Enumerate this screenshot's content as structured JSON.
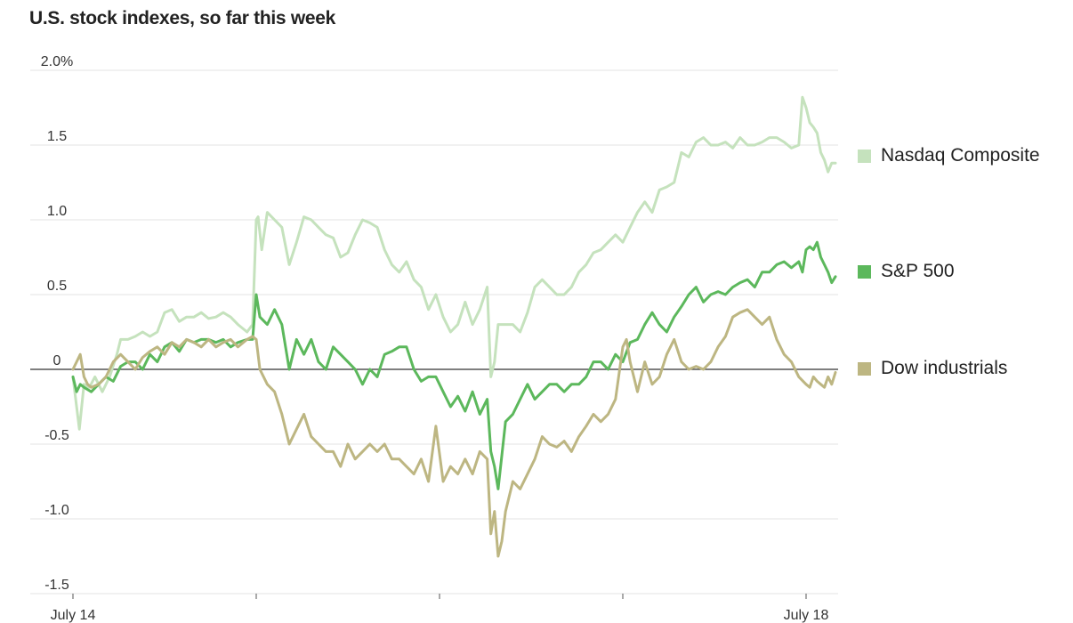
{
  "chart_data": {
    "type": "line",
    "title": "U.S. stock indexes, so far this week",
    "ylim": [
      -1.5,
      2.0
    ],
    "y_ticks": [
      {
        "value": 2.0,
        "label": "2.0%"
      },
      {
        "value": 1.5,
        "label": "1.5"
      },
      {
        "value": 1.0,
        "label": "1.0"
      },
      {
        "value": 0.5,
        "label": "0.5"
      },
      {
        "value": 0,
        "label": "0"
      },
      {
        "value": -0.5,
        "label": "-0.5"
      },
      {
        "value": -1.0,
        "label": "-1.0"
      },
      {
        "value": -1.5,
        "label": "-1.5"
      }
    ],
    "x_ticks": [
      {
        "value": 0,
        "label": "July 14"
      },
      {
        "value": 1,
        "label": ""
      },
      {
        "value": 2,
        "label": ""
      },
      {
        "value": 3,
        "label": ""
      },
      {
        "value": 4,
        "label": "July 18"
      }
    ],
    "xlim": [
      0,
      4.17
    ],
    "grid": true,
    "legend_position": "right",
    "series": [
      {
        "name": "Nasdaq Composite",
        "color": "#c5e2bd",
        "x": [
          0.0,
          0.02,
          0.035,
          0.06,
          0.09,
          0.12,
          0.16,
          0.2,
          0.24,
          0.26,
          0.3,
          0.34,
          0.38,
          0.42,
          0.46,
          0.5,
          0.54,
          0.58,
          0.62,
          0.66,
          0.7,
          0.74,
          0.78,
          0.82,
          0.86,
          0.9,
          0.95,
          0.98,
          1.0,
          1.01,
          1.03,
          1.06,
          1.1,
          1.14,
          1.18,
          1.22,
          1.26,
          1.3,
          1.34,
          1.38,
          1.42,
          1.46,
          1.5,
          1.54,
          1.58,
          1.62,
          1.66,
          1.7,
          1.74,
          1.78,
          1.82,
          1.86,
          1.9,
          1.94,
          1.98,
          2.02,
          2.06,
          2.1,
          2.14,
          2.18,
          2.22,
          2.26,
          2.28,
          2.3,
          2.32,
          2.36,
          2.4,
          2.44,
          2.48,
          2.52,
          2.56,
          2.6,
          2.64,
          2.68,
          2.72,
          2.76,
          2.8,
          2.84,
          2.88,
          2.92,
          2.96,
          3.0,
          3.04,
          3.08,
          3.12,
          3.16,
          3.2,
          3.24,
          3.28,
          3.32,
          3.36,
          3.4,
          3.44,
          3.48,
          3.52,
          3.56,
          3.6,
          3.64,
          3.68,
          3.72,
          3.76,
          3.8,
          3.84,
          3.88,
          3.92,
          3.96,
          3.98,
          4.0,
          4.02,
          4.04,
          4.06,
          4.08,
          4.1,
          4.12,
          4.14,
          4.16
        ],
        "values": [
          -0.05,
          -0.25,
          -0.4,
          -0.1,
          -0.12,
          -0.05,
          -0.15,
          -0.05,
          0.1,
          0.2,
          0.2,
          0.22,
          0.25,
          0.22,
          0.25,
          0.38,
          0.4,
          0.32,
          0.35,
          0.35,
          0.38,
          0.34,
          0.35,
          0.38,
          0.35,
          0.3,
          0.25,
          0.3,
          1.0,
          1.02,
          0.8,
          1.05,
          1.0,
          0.95,
          0.7,
          0.85,
          1.02,
          1.0,
          0.95,
          0.9,
          0.88,
          0.75,
          0.78,
          0.9,
          1.0,
          0.98,
          0.95,
          0.8,
          0.7,
          0.65,
          0.72,
          0.6,
          0.55,
          0.4,
          0.5,
          0.35,
          0.25,
          0.3,
          0.45,
          0.3,
          0.4,
          0.55,
          -0.05,
          0.05,
          0.3,
          0.3,
          0.3,
          0.25,
          0.38,
          0.55,
          0.6,
          0.55,
          0.5,
          0.5,
          0.55,
          0.65,
          0.7,
          0.78,
          0.8,
          0.85,
          0.9,
          0.85,
          0.95,
          1.05,
          1.12,
          1.05,
          1.2,
          1.22,
          1.25,
          1.45,
          1.42,
          1.52,
          1.55,
          1.5,
          1.5,
          1.52,
          1.48,
          1.55,
          1.5,
          1.5,
          1.52,
          1.55,
          1.55,
          1.52,
          1.48,
          1.5,
          1.82,
          1.75,
          1.65,
          1.62,
          1.58,
          1.45,
          1.4,
          1.32,
          1.38,
          1.38
        ]
      },
      {
        "name": "S&P 500",
        "color": "#5cb85c",
        "x": [
          0.0,
          0.02,
          0.04,
          0.06,
          0.1,
          0.14,
          0.18,
          0.22,
          0.26,
          0.3,
          0.34,
          0.38,
          0.42,
          0.46,
          0.5,
          0.54,
          0.58,
          0.62,
          0.66,
          0.7,
          0.74,
          0.78,
          0.82,
          0.86,
          0.9,
          0.95,
          0.98,
          1.0,
          1.02,
          1.06,
          1.1,
          1.14,
          1.18,
          1.22,
          1.26,
          1.3,
          1.34,
          1.38,
          1.42,
          1.46,
          1.5,
          1.54,
          1.58,
          1.62,
          1.66,
          1.7,
          1.74,
          1.78,
          1.82,
          1.86,
          1.9,
          1.94,
          1.98,
          2.02,
          2.06,
          2.1,
          2.14,
          2.18,
          2.22,
          2.26,
          2.28,
          2.3,
          2.32,
          2.36,
          2.4,
          2.44,
          2.48,
          2.52,
          2.56,
          2.6,
          2.64,
          2.68,
          2.72,
          2.76,
          2.8,
          2.84,
          2.88,
          2.92,
          2.96,
          3.0,
          3.04,
          3.08,
          3.12,
          3.16,
          3.2,
          3.24,
          3.28,
          3.32,
          3.36,
          3.4,
          3.44,
          3.48,
          3.52,
          3.56,
          3.6,
          3.64,
          3.68,
          3.72,
          3.76,
          3.8,
          3.84,
          3.88,
          3.92,
          3.96,
          3.98,
          4.0,
          4.02,
          4.04,
          4.06,
          4.08,
          4.1,
          4.12,
          4.14,
          4.16
        ],
        "values": [
          -0.05,
          -0.15,
          -0.1,
          -0.12,
          -0.15,
          -0.1,
          -0.05,
          -0.08,
          0.02,
          0.05,
          0.05,
          0.0,
          0.1,
          0.05,
          0.15,
          0.18,
          0.12,
          0.2,
          0.18,
          0.2,
          0.2,
          0.18,
          0.2,
          0.15,
          0.18,
          0.2,
          0.2,
          0.5,
          0.35,
          0.3,
          0.4,
          0.3,
          0.0,
          0.2,
          0.1,
          0.2,
          0.05,
          0.0,
          0.15,
          0.1,
          0.05,
          0.0,
          -0.1,
          0.0,
          -0.05,
          0.1,
          0.12,
          0.15,
          0.15,
          0.0,
          -0.08,
          -0.05,
          -0.05,
          -0.15,
          -0.25,
          -0.18,
          -0.28,
          -0.15,
          -0.3,
          -0.2,
          -0.55,
          -0.65,
          -0.8,
          -0.35,
          -0.3,
          -0.2,
          -0.1,
          -0.2,
          -0.15,
          -0.1,
          -0.1,
          -0.15,
          -0.1,
          -0.1,
          -0.05,
          0.05,
          0.05,
          0.0,
          0.1,
          0.05,
          0.18,
          0.2,
          0.3,
          0.38,
          0.3,
          0.25,
          0.35,
          0.42,
          0.5,
          0.55,
          0.45,
          0.5,
          0.52,
          0.5,
          0.55,
          0.58,
          0.6,
          0.55,
          0.65,
          0.65,
          0.7,
          0.72,
          0.68,
          0.72,
          0.65,
          0.8,
          0.82,
          0.8,
          0.85,
          0.75,
          0.7,
          0.65,
          0.58,
          0.62
        ],
        "width": 3
      },
      {
        "name": "Dow industrials",
        "color": "#bdb682",
        "x": [
          0.0,
          0.02,
          0.04,
          0.06,
          0.08,
          0.1,
          0.14,
          0.18,
          0.22,
          0.26,
          0.3,
          0.34,
          0.38,
          0.42,
          0.46,
          0.5,
          0.54,
          0.58,
          0.62,
          0.66,
          0.7,
          0.74,
          0.78,
          0.82,
          0.86,
          0.9,
          0.95,
          0.98,
          1.0,
          1.02,
          1.06,
          1.1,
          1.14,
          1.18,
          1.22,
          1.26,
          1.3,
          1.34,
          1.38,
          1.42,
          1.46,
          1.5,
          1.54,
          1.58,
          1.62,
          1.66,
          1.7,
          1.74,
          1.78,
          1.82,
          1.86,
          1.9,
          1.94,
          1.98,
          2.02,
          2.06,
          2.1,
          2.14,
          2.18,
          2.22,
          2.26,
          2.28,
          2.3,
          2.32,
          2.34,
          2.36,
          2.4,
          2.44,
          2.48,
          2.52,
          2.56,
          2.6,
          2.64,
          2.68,
          2.72,
          2.76,
          2.8,
          2.84,
          2.88,
          2.92,
          2.96,
          3.0,
          3.02,
          3.04,
          3.08,
          3.12,
          3.16,
          3.2,
          3.24,
          3.28,
          3.32,
          3.36,
          3.4,
          3.44,
          3.48,
          3.52,
          3.56,
          3.6,
          3.64,
          3.68,
          3.72,
          3.76,
          3.8,
          3.84,
          3.88,
          3.92,
          3.96,
          4.0,
          4.02,
          4.04,
          4.06,
          4.08,
          4.1,
          4.12,
          4.14,
          4.16
        ],
        "values": [
          0.0,
          0.05,
          0.1,
          -0.05,
          -0.1,
          -0.12,
          -0.1,
          -0.05,
          0.05,
          0.1,
          0.05,
          0.0,
          0.08,
          0.12,
          0.15,
          0.1,
          0.18,
          0.15,
          0.2,
          0.18,
          0.15,
          0.2,
          0.15,
          0.18,
          0.2,
          0.15,
          0.2,
          0.22,
          0.2,
          0.0,
          -0.1,
          -0.15,
          -0.3,
          -0.5,
          -0.4,
          -0.3,
          -0.45,
          -0.5,
          -0.55,
          -0.55,
          -0.65,
          -0.5,
          -0.6,
          -0.55,
          -0.5,
          -0.55,
          -0.5,
          -0.6,
          -0.6,
          -0.65,
          -0.7,
          -0.6,
          -0.75,
          -0.38,
          -0.75,
          -0.65,
          -0.7,
          -0.6,
          -0.7,
          -0.55,
          -0.6,
          -1.1,
          -0.95,
          -1.25,
          -1.15,
          -0.95,
          -0.75,
          -0.8,
          -0.7,
          -0.6,
          -0.45,
          -0.5,
          -0.52,
          -0.48,
          -0.55,
          -0.45,
          -0.38,
          -0.3,
          -0.35,
          -0.3,
          -0.2,
          0.15,
          0.2,
          0.05,
          -0.15,
          0.05,
          -0.1,
          -0.05,
          0.1,
          0.2,
          0.05,
          0.0,
          0.02,
          0.0,
          0.05,
          0.15,
          0.22,
          0.35,
          0.38,
          0.4,
          0.35,
          0.3,
          0.35,
          0.2,
          0.1,
          0.05,
          -0.05,
          -0.1,
          -0.12,
          -0.05,
          -0.08,
          -0.1,
          -0.12,
          -0.05,
          -0.1,
          -0.02
        ],
        "width": 3
      }
    ]
  }
}
